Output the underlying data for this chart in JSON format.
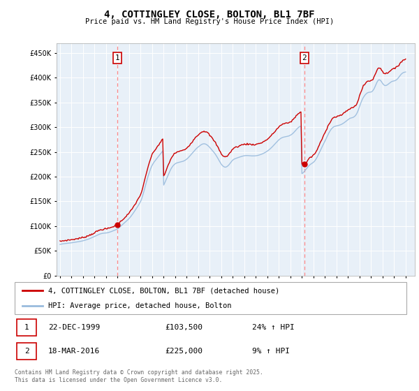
{
  "title": "4, COTTINGLEY CLOSE, BOLTON, BL1 7BF",
  "subtitle": "Price paid vs. HM Land Registry's House Price Index (HPI)",
  "ylim": [
    0,
    470000
  ],
  "yticks": [
    0,
    50000,
    100000,
    150000,
    200000,
    250000,
    300000,
    350000,
    400000,
    450000
  ],
  "xlim_start": 1994.7,
  "xlim_end": 2025.8,
  "sale1_year": 1999.98,
  "sale1_price": 103500,
  "sale2_year": 2016.22,
  "sale2_price": 225000,
  "line_color_property": "#cc0000",
  "line_color_hpi": "#99bbdd",
  "dashed_vline_color": "#ff8888",
  "chart_bg": "#e8f0f8",
  "legend_label_property": "4, COTTINGLEY CLOSE, BOLTON, BL1 7BF (detached house)",
  "legend_label_hpi": "HPI: Average price, detached house, Bolton",
  "footer_text": "Contains HM Land Registry data © Crown copyright and database right 2025.\nThis data is licensed under the Open Government Licence v3.0.",
  "sale_info": [
    {
      "num": "1",
      "date": "22-DEC-1999",
      "price": "£103,500",
      "hpi": "24% ↑ HPI"
    },
    {
      "num": "2",
      "date": "18-MAR-2016",
      "price": "£225,000",
      "hpi": "9% ↑ HPI"
    }
  ],
  "hpi_data": {
    "years": [
      1995.0,
      1995.083,
      1995.167,
      1995.25,
      1995.333,
      1995.417,
      1995.5,
      1995.583,
      1995.667,
      1995.75,
      1995.833,
      1995.917,
      1996.0,
      1996.083,
      1996.167,
      1996.25,
      1996.333,
      1996.417,
      1996.5,
      1996.583,
      1996.667,
      1996.75,
      1996.833,
      1996.917,
      1997.0,
      1997.083,
      1997.167,
      1997.25,
      1997.333,
      1997.417,
      1997.5,
      1997.583,
      1997.667,
      1997.75,
      1997.833,
      1997.917,
      1998.0,
      1998.083,
      1998.167,
      1998.25,
      1998.333,
      1998.417,
      1998.5,
      1998.583,
      1998.667,
      1998.75,
      1998.833,
      1998.917,
      1999.0,
      1999.083,
      1999.167,
      1999.25,
      1999.333,
      1999.417,
      1999.5,
      1999.583,
      1999.667,
      1999.75,
      1999.833,
      1999.917,
      2000.0,
      2000.083,
      2000.167,
      2000.25,
      2000.333,
      2000.417,
      2000.5,
      2000.583,
      2000.667,
      2000.75,
      2000.833,
      2000.917,
      2001.0,
      2001.083,
      2001.167,
      2001.25,
      2001.333,
      2001.417,
      2001.5,
      2001.583,
      2001.667,
      2001.75,
      2001.833,
      2001.917,
      2002.0,
      2002.083,
      2002.167,
      2002.25,
      2002.333,
      2002.417,
      2002.5,
      2002.583,
      2002.667,
      2002.75,
      2002.833,
      2002.917,
      2003.0,
      2003.083,
      2003.167,
      2003.25,
      2003.333,
      2003.417,
      2003.5,
      2003.583,
      2003.667,
      2003.75,
      2003.833,
      2003.917,
      2004.0,
      2004.083,
      2004.167,
      2004.25,
      2004.333,
      2004.417,
      2004.5,
      2004.583,
      2004.667,
      2004.75,
      2004.833,
      2004.917,
      2005.0,
      2005.083,
      2005.167,
      2005.25,
      2005.333,
      2005.417,
      2005.5,
      2005.583,
      2005.667,
      2005.75,
      2005.833,
      2005.917,
      2006.0,
      2006.083,
      2006.167,
      2006.25,
      2006.333,
      2006.417,
      2006.5,
      2006.583,
      2006.667,
      2006.75,
      2006.833,
      2006.917,
      2007.0,
      2007.083,
      2007.167,
      2007.25,
      2007.333,
      2007.417,
      2007.5,
      2007.583,
      2007.667,
      2007.75,
      2007.833,
      2007.917,
      2008.0,
      2008.083,
      2008.167,
      2008.25,
      2008.333,
      2008.417,
      2008.5,
      2008.583,
      2008.667,
      2008.75,
      2008.833,
      2008.917,
      2009.0,
      2009.083,
      2009.167,
      2009.25,
      2009.333,
      2009.417,
      2009.5,
      2009.583,
      2009.667,
      2009.75,
      2009.833,
      2009.917,
      2010.0,
      2010.083,
      2010.167,
      2010.25,
      2010.333,
      2010.417,
      2010.5,
      2010.583,
      2010.667,
      2010.75,
      2010.833,
      2010.917,
      2011.0,
      2011.083,
      2011.167,
      2011.25,
      2011.333,
      2011.417,
      2011.5,
      2011.583,
      2011.667,
      2011.75,
      2011.833,
      2011.917,
      2012.0,
      2012.083,
      2012.167,
      2012.25,
      2012.333,
      2012.417,
      2012.5,
      2012.583,
      2012.667,
      2012.75,
      2012.833,
      2012.917,
      2013.0,
      2013.083,
      2013.167,
      2013.25,
      2013.333,
      2013.417,
      2013.5,
      2013.583,
      2013.667,
      2013.75,
      2013.833,
      2013.917,
      2014.0,
      2014.083,
      2014.167,
      2014.25,
      2014.333,
      2014.417,
      2014.5,
      2014.583,
      2014.667,
      2014.75,
      2014.833,
      2014.917,
      2015.0,
      2015.083,
      2015.167,
      2015.25,
      2015.333,
      2015.417,
      2015.5,
      2015.583,
      2015.667,
      2015.75,
      2015.833,
      2015.917,
      2016.0,
      2016.083,
      2016.167,
      2016.25,
      2016.333,
      2016.417,
      2016.5,
      2016.583,
      2016.667,
      2016.75,
      2016.833,
      2016.917,
      2017.0,
      2017.083,
      2017.167,
      2017.25,
      2017.333,
      2017.417,
      2017.5,
      2017.583,
      2017.667,
      2017.75,
      2017.833,
      2017.917,
      2018.0,
      2018.083,
      2018.167,
      2018.25,
      2018.333,
      2018.417,
      2018.5,
      2018.583,
      2018.667,
      2018.75,
      2018.833,
      2018.917,
      2019.0,
      2019.083,
      2019.167,
      2019.25,
      2019.333,
      2019.417,
      2019.5,
      2019.583,
      2019.667,
      2019.75,
      2019.833,
      2019.917,
      2020.0,
      2020.083,
      2020.167,
      2020.25,
      2020.333,
      2020.417,
      2020.5,
      2020.583,
      2020.667,
      2020.75,
      2020.833,
      2020.917,
      2021.0,
      2021.083,
      2021.167,
      2021.25,
      2021.333,
      2021.417,
      2021.5,
      2021.583,
      2021.667,
      2021.75,
      2021.833,
      2021.917,
      2022.0,
      2022.083,
      2022.167,
      2022.25,
      2022.333,
      2022.417,
      2022.5,
      2022.583,
      2022.667,
      2022.75,
      2022.833,
      2022.917,
      2023.0,
      2023.083,
      2023.167,
      2023.25,
      2023.333,
      2023.417,
      2023.5,
      2023.583,
      2023.667,
      2023.75,
      2023.833,
      2023.917,
      2024.0,
      2024.083,
      2024.167,
      2024.25,
      2024.333,
      2024.417,
      2024.5,
      2024.583,
      2024.667,
      2024.75,
      2024.833,
      2024.917,
      2025.0
    ],
    "prices": [
      63000,
      63500,
      64000,
      64200,
      64500,
      64800,
      65100,
      65300,
      65500,
      65700,
      65900,
      66100,
      66400,
      66700,
      67000,
      67300,
      67600,
      67900,
      68200,
      68500,
      68800,
      69200,
      69600,
      70000,
      70500,
      71000,
      71600,
      72200,
      72800,
      73400,
      74100,
      74900,
      75700,
      76600,
      77500,
      78400,
      79300,
      80200,
      81100,
      82000,
      82900,
      83700,
      84400,
      85000,
      85400,
      85700,
      85900,
      86000,
      86200,
      86500,
      86900,
      87500,
      88100,
      88800,
      89500,
      90300,
      91100,
      91900,
      92700,
      93500,
      94500,
      96000,
      97800,
      99500,
      101200,
      103000,
      104800,
      106500,
      108200,
      110000,
      111800,
      113500,
      115500,
      117800,
      120200,
      122800,
      125500,
      128300,
      131200,
      134100,
      137000,
      140000,
      143200,
      146500,
      150000,
      155000,
      161000,
      167500,
      174500,
      182000,
      189000,
      196000,
      202500,
      208500,
      214000,
      219000,
      223000,
      226500,
      229500,
      232000,
      234500,
      237000,
      239500,
      242000,
      244500,
      247000,
      249500,
      252000,
      183000,
      187000,
      191500,
      196000,
      200500,
      205000,
      209500,
      213500,
      217000,
      220000,
      222500,
      224500,
      226000,
      227200,
      228000,
      228500,
      229000,
      229500,
      230000,
      230500,
      231000,
      231800,
      232800,
      234000,
      235500,
      237200,
      239200,
      241300,
      243500,
      245700,
      248000,
      250200,
      252500,
      254700,
      256700,
      258500,
      260000,
      261500,
      263000,
      264500,
      265500,
      266200,
      266500,
      266200,
      265500,
      264400,
      262800,
      261000,
      259000,
      256800,
      254500,
      252200,
      250000,
      247500,
      244800,
      241800,
      238500,
      235000,
      231500,
      228200,
      225200,
      222800,
      221000,
      219800,
      219200,
      219500,
      220500,
      222000,
      224000,
      226500,
      229000,
      231500,
      233500,
      235000,
      236000,
      236800,
      237500,
      238200,
      238800,
      239500,
      240200,
      240800,
      241400,
      241900,
      242300,
      242600,
      242700,
      242700,
      242600,
      242400,
      242200,
      242000,
      241900,
      241900,
      241900,
      242000,
      242200,
      242500,
      242900,
      243400,
      244000,
      244700,
      245400,
      246200,
      247100,
      248100,
      249200,
      250400,
      251700,
      253100,
      254700,
      256400,
      258200,
      260100,
      262100,
      264200,
      266300,
      268400,
      270500,
      272500,
      274400,
      276000,
      277400,
      278500,
      279300,
      279900,
      280300,
      280700,
      281100,
      281500,
      282000,
      282800,
      283800,
      285000,
      286500,
      288200,
      290200,
      292400,
      294600,
      296800,
      298700,
      300300,
      301500,
      302200,
      206000,
      207500,
      209500,
      211800,
      214200,
      216700,
      219200,
      221500,
      223500,
      225000,
      226300,
      227500,
      229000,
      231000,
      233500,
      236500,
      240000,
      244000,
      248000,
      252000,
      256000,
      260000,
      264000,
      268000,
      272000,
      276000,
      280000,
      284000,
      288000,
      291500,
      294500,
      297000,
      299000,
      300500,
      301500,
      302000,
      302500,
      303000,
      303500,
      304000,
      304700,
      305500,
      306500,
      307700,
      309000,
      310500,
      312000,
      313500,
      315000,
      316500,
      317800,
      318500,
      319000,
      319500,
      320500,
      322000,
      324000,
      327000,
      331000,
      336000,
      341500,
      347000,
      352000,
      356500,
      360000,
      363000,
      365500,
      367500,
      369000,
      370000,
      370500,
      370800,
      371000,
      372000,
      374000,
      377000,
      381000,
      385500,
      390000,
      393500,
      395500,
      395500,
      394000,
      391500,
      388500,
      386000,
      384500,
      384000,
      384500,
      385500,
      387000,
      388500,
      390000,
      391500,
      392500,
      393000,
      393500,
      394000,
      395000,
      396500,
      398500,
      401000,
      403500,
      406000,
      408000,
      409500,
      410500,
      411000,
      411500
    ]
  }
}
